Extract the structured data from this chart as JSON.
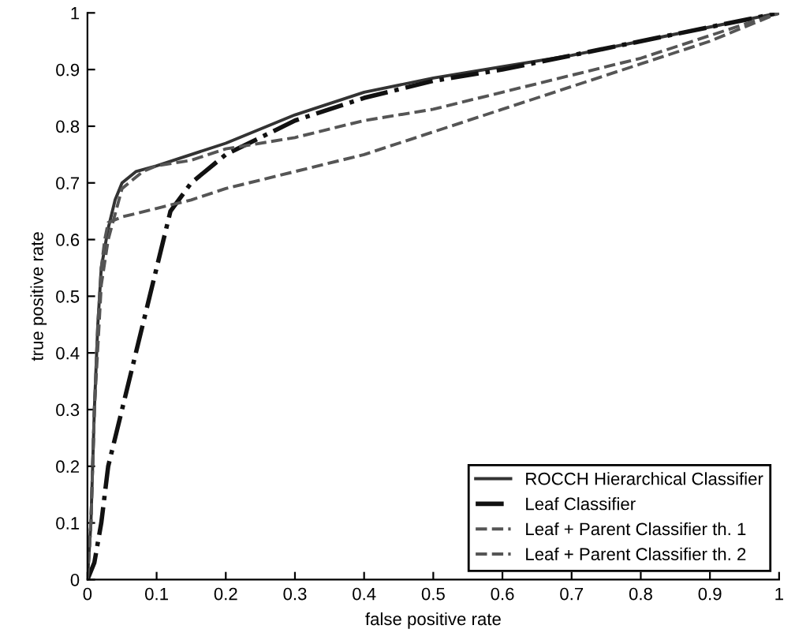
{
  "chart_data": {
    "type": "line",
    "xlabel": "false positive rate",
    "ylabel": "true positive rate",
    "xlim": [
      0,
      1
    ],
    "ylim": [
      0,
      1
    ],
    "xticks": [
      0,
      0.1,
      0.2,
      0.3,
      0.4,
      0.5,
      0.6,
      0.7,
      0.8,
      0.9,
      1
    ],
    "yticks": [
      0,
      0.1,
      0.2,
      0.3,
      0.4,
      0.5,
      0.6,
      0.7,
      0.8,
      0.9,
      1
    ],
    "grid": false,
    "legend": "bottom right",
    "marker": "none",
    "series": [
      {
        "name": "ROCCH Hierarchical Classifier",
        "color": "#333333",
        "line_style": "solid",
        "x": [
          0,
          0.005,
          0.01,
          0.015,
          0.02,
          0.03,
          0.04,
          0.05,
          0.07,
          0.1,
          0.2,
          0.3,
          0.4,
          0.5,
          0.6,
          0.7,
          0.8,
          0.9,
          1
        ],
        "values": [
          0,
          0.1,
          0.3,
          0.45,
          0.55,
          0.62,
          0.67,
          0.7,
          0.72,
          0.73,
          0.77,
          0.82,
          0.86,
          0.885,
          0.905,
          0.925,
          0.95,
          0.975,
          1
        ]
      },
      {
        "name": "Leaf Classifier",
        "color": "#111111",
        "line_style": "dashdot",
        "x": [
          0,
          0.01,
          0.02,
          0.03,
          0.05,
          0.07,
          0.1,
          0.12,
          0.15,
          0.2,
          0.25,
          0.3,
          0.4,
          0.5,
          0.6,
          0.7,
          0.8,
          0.9,
          1
        ],
        "values": [
          0,
          0.03,
          0.1,
          0.2,
          0.3,
          0.4,
          0.55,
          0.65,
          0.7,
          0.75,
          0.78,
          0.81,
          0.85,
          0.88,
          0.9,
          0.925,
          0.95,
          0.975,
          1
        ]
      },
      {
        "name": "Leaf + Parent Classifier th. 1",
        "color": "#555555",
        "line_style": "dashed",
        "x": [
          0,
          0.005,
          0.01,
          0.02,
          0.03,
          0.05,
          0.08,
          0.1,
          0.15,
          0.2,
          0.3,
          0.4,
          0.5,
          0.6,
          0.7,
          0.8,
          0.9,
          1
        ],
        "values": [
          0,
          0.1,
          0.3,
          0.52,
          0.6,
          0.69,
          0.72,
          0.73,
          0.74,
          0.76,
          0.78,
          0.81,
          0.83,
          0.86,
          0.89,
          0.92,
          0.96,
          1
        ]
      },
      {
        "name": "Leaf + Parent Classifier th. 2",
        "color": "#555555",
        "line_style": "dashed",
        "x": [
          0,
          0.005,
          0.01,
          0.015,
          0.02,
          0.025,
          0.03,
          0.05,
          0.1,
          0.15,
          0.2,
          0.3,
          0.4,
          0.5,
          0.6,
          0.7,
          0.8,
          0.9,
          1
        ],
        "values": [
          0,
          0.1,
          0.3,
          0.45,
          0.55,
          0.6,
          0.63,
          0.64,
          0.655,
          0.67,
          0.69,
          0.72,
          0.75,
          0.79,
          0.83,
          0.87,
          0.91,
          0.95,
          1
        ]
      }
    ]
  }
}
